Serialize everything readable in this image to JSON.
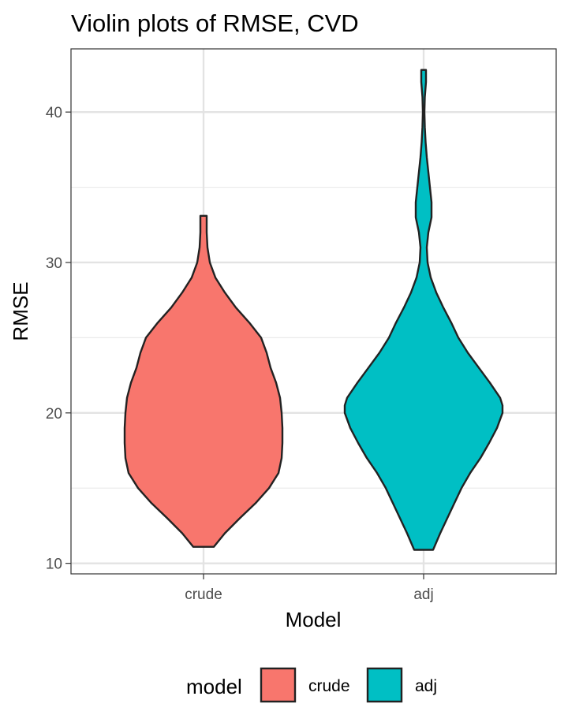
{
  "chart_data": {
    "type": "violin",
    "title": "Violin plots of RMSE, CVD",
    "xlabel": "Model",
    "ylabel": "RMSE",
    "categories": [
      "crude",
      "adj"
    ],
    "ylim": [
      9.3,
      44.2
    ],
    "yticks": [
      10,
      20,
      30,
      40
    ],
    "grid": true,
    "legend": {
      "title": "model",
      "position": "bottom",
      "entries": [
        {
          "label": "crude",
          "color": "#F8766D"
        },
        {
          "label": "adj",
          "color": "#00BFC4"
        }
      ]
    },
    "series": [
      {
        "name": "crude",
        "color": "#F8766D",
        "min": 11.1,
        "max": 33.1,
        "profile": [
          [
            11.1,
            0.13
          ],
          [
            12.0,
            0.27
          ],
          [
            13.0,
            0.46
          ],
          [
            14.0,
            0.66
          ],
          [
            15.0,
            0.83
          ],
          [
            16.0,
            0.95
          ],
          [
            17.0,
            0.99
          ],
          [
            18.0,
            1.0
          ],
          [
            19.0,
            1.0
          ],
          [
            20.0,
            0.99
          ],
          [
            21.0,
            0.97
          ],
          [
            22.0,
            0.92
          ],
          [
            23.0,
            0.85
          ],
          [
            24.0,
            0.8
          ],
          [
            25.0,
            0.73
          ],
          [
            26.0,
            0.58
          ],
          [
            27.0,
            0.41
          ],
          [
            28.0,
            0.27
          ],
          [
            29.0,
            0.15
          ],
          [
            30.0,
            0.08
          ],
          [
            31.0,
            0.05
          ],
          [
            32.0,
            0.04
          ],
          [
            33.1,
            0.04
          ]
        ]
      },
      {
        "name": "adj",
        "color": "#00BFC4",
        "min": 10.9,
        "max": 42.8,
        "profile": [
          [
            10.9,
            0.12
          ],
          [
            12.0,
            0.21
          ],
          [
            13.0,
            0.3
          ],
          [
            14.0,
            0.39
          ],
          [
            15.0,
            0.48
          ],
          [
            16.0,
            0.59
          ],
          [
            17.0,
            0.72
          ],
          [
            18.0,
            0.83
          ],
          [
            19.0,
            0.93
          ],
          [
            20.0,
            1.0
          ],
          [
            20.5,
            1.0
          ],
          [
            21.0,
            0.97
          ],
          [
            22.0,
            0.84
          ],
          [
            23.0,
            0.7
          ],
          [
            24.0,
            0.56
          ],
          [
            25.0,
            0.44
          ],
          [
            26.0,
            0.35
          ],
          [
            27.0,
            0.25
          ],
          [
            28.0,
            0.16
          ],
          [
            29.0,
            0.09
          ],
          [
            30.0,
            0.05
          ],
          [
            31.0,
            0.04
          ],
          [
            32.0,
            0.06
          ],
          [
            33.0,
            0.1
          ],
          [
            34.0,
            0.1
          ],
          [
            35.0,
            0.08
          ],
          [
            36.0,
            0.06
          ],
          [
            37.0,
            0.04
          ],
          [
            38.0,
            0.025
          ],
          [
            39.0,
            0.015
          ],
          [
            40.0,
            0.01
          ],
          [
            41.0,
            0.015
          ],
          [
            42.0,
            0.03
          ],
          [
            42.8,
            0.03
          ]
        ]
      }
    ]
  }
}
